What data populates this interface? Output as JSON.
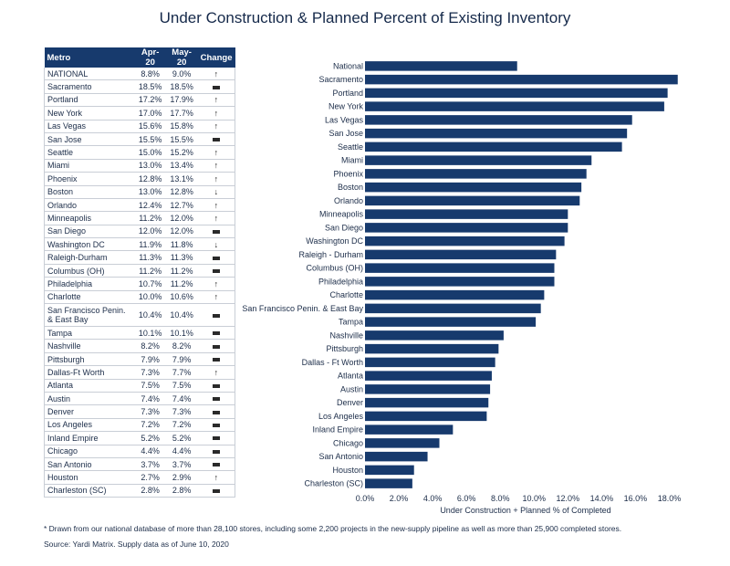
{
  "title": "Under Construction & Planned Percent of Existing Inventory",
  "table": {
    "headers": [
      "Metro",
      "Apr-20",
      "May-20",
      "Change"
    ],
    "rows": [
      {
        "metro": "NATIONAL",
        "apr": "8.8%",
        "may": "9.0%",
        "change": "up"
      },
      {
        "metro": "Sacramento",
        "apr": "18.5%",
        "may": "18.5%",
        "change": "flat"
      },
      {
        "metro": "Portland",
        "apr": "17.2%",
        "may": "17.9%",
        "change": "up"
      },
      {
        "metro": "New York",
        "apr": "17.0%",
        "may": "17.7%",
        "change": "up"
      },
      {
        "metro": "Las Vegas",
        "apr": "15.6%",
        "may": "15.8%",
        "change": "up"
      },
      {
        "metro": "San Jose",
        "apr": "15.5%",
        "may": "15.5%",
        "change": "flat"
      },
      {
        "metro": "Seattle",
        "apr": "15.0%",
        "may": "15.2%",
        "change": "up"
      },
      {
        "metro": "Miami",
        "apr": "13.0%",
        "may": "13.4%",
        "change": "up"
      },
      {
        "metro": "Phoenix",
        "apr": "12.8%",
        "may": "13.1%",
        "change": "up"
      },
      {
        "metro": "Boston",
        "apr": "13.0%",
        "may": "12.8%",
        "change": "down"
      },
      {
        "metro": "Orlando",
        "apr": "12.4%",
        "may": "12.7%",
        "change": "up"
      },
      {
        "metro": "Minneapolis",
        "apr": "11.2%",
        "may": "12.0%",
        "change": "up"
      },
      {
        "metro": "San Diego",
        "apr": "12.0%",
        "may": "12.0%",
        "change": "flat"
      },
      {
        "metro": "Washington DC",
        "apr": "11.9%",
        "may": "11.8%",
        "change": "down"
      },
      {
        "metro": "Raleigh-Durham",
        "apr": "11.3%",
        "may": "11.3%",
        "change": "flat"
      },
      {
        "metro": "Columbus (OH)",
        "apr": "11.2%",
        "may": "11.2%",
        "change": "flat"
      },
      {
        "metro": "Philadelphia",
        "apr": "10.7%",
        "may": "11.2%",
        "change": "up"
      },
      {
        "metro": "Charlotte",
        "apr": "10.0%",
        "may": "10.6%",
        "change": "up"
      },
      {
        "metro": "San Francisco Penin. & East Bay",
        "apr": "10.4%",
        "may": "10.4%",
        "change": "flat"
      },
      {
        "metro": "Tampa",
        "apr": "10.1%",
        "may": "10.1%",
        "change": "flat"
      },
      {
        "metro": "Nashville",
        "apr": "8.2%",
        "may": "8.2%",
        "change": "flat"
      },
      {
        "metro": "Pittsburgh",
        "apr": "7.9%",
        "may": "7.9%",
        "change": "flat"
      },
      {
        "metro": "Dallas-Ft Worth",
        "apr": "7.3%",
        "may": "7.7%",
        "change": "up"
      },
      {
        "metro": "Atlanta",
        "apr": "7.5%",
        "may": "7.5%",
        "change": "flat"
      },
      {
        "metro": "Austin",
        "apr": "7.4%",
        "may": "7.4%",
        "change": "flat"
      },
      {
        "metro": "Denver",
        "apr": "7.3%",
        "may": "7.3%",
        "change": "flat"
      },
      {
        "metro": "Los Angeles",
        "apr": "7.2%",
        "may": "7.2%",
        "change": "flat"
      },
      {
        "metro": "Inland Empire",
        "apr": "5.2%",
        "may": "5.2%",
        "change": "flat"
      },
      {
        "metro": "Chicago",
        "apr": "4.4%",
        "may": "4.4%",
        "change": "flat"
      },
      {
        "metro": "San Antonio",
        "apr": "3.7%",
        "may": "3.7%",
        "change": "flat"
      },
      {
        "metro": "Houston",
        "apr": "2.7%",
        "may": "2.9%",
        "change": "up"
      },
      {
        "metro": "Charleston (SC)",
        "apr": "2.8%",
        "may": "2.8%",
        "change": "flat"
      }
    ]
  },
  "chart_data": {
    "type": "bar",
    "orientation": "horizontal",
    "categories": [
      "National",
      "Sacramento",
      "Portland",
      "New York",
      "Las Vegas",
      "San Jose",
      "Seattle",
      "Miami",
      "Phoenix",
      "Boston",
      "Orlando",
      "Minneapolis",
      "San Diego",
      "Washington DC",
      "Raleigh - Durham",
      "Columbus (OH)",
      "Philadelphia",
      "Charlotte",
      "San Francisco Penin. & East Bay",
      "Tampa",
      "Nashville",
      "Pittsburgh",
      "Dallas - Ft Worth",
      "Atlanta",
      "Austin",
      "Denver",
      "Los Angeles",
      "Inland Empire",
      "Chicago",
      "San Antonio",
      "Houston",
      "Charleston (SC)"
    ],
    "values": [
      9.0,
      18.5,
      17.9,
      17.7,
      15.8,
      15.5,
      15.2,
      13.4,
      13.1,
      12.8,
      12.7,
      12.0,
      12.0,
      11.8,
      11.3,
      11.2,
      11.2,
      10.6,
      10.4,
      10.1,
      8.2,
      7.9,
      7.7,
      7.5,
      7.4,
      7.3,
      7.2,
      5.2,
      4.4,
      3.7,
      2.9,
      2.8
    ],
    "xlabel": "Under Construction + Planned % of Completed",
    "xticks": [
      "0.0%",
      "2.0%",
      "4.0%",
      "6.0%",
      "8.0%",
      "10.0%",
      "12.0%",
      "14.0%",
      "16.0%",
      "18.0%"
    ],
    "xlim": [
      0,
      19
    ],
    "bar_color": "#173a6d",
    "grid": false
  },
  "footnote": "* Drawn from our national database of more than 28,100 stores, including some 2,200 projects in the new-supply pipeline as well as more than 25,900 completed stores.",
  "source": "Source: Yardi Matrix. Supply data as of June 10, 2020"
}
